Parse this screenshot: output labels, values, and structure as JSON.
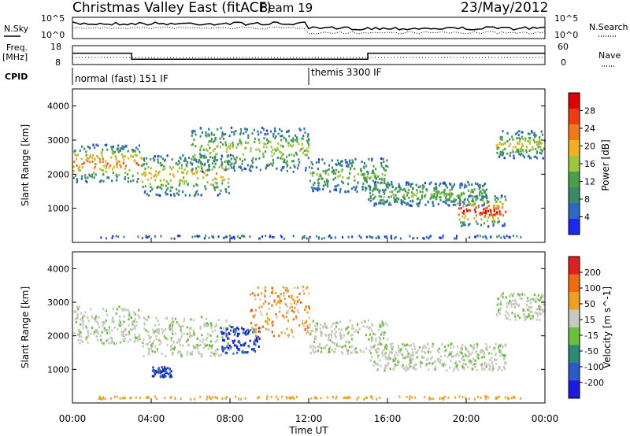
{
  "header": {
    "title": "Christmas Valley East (fitACF)",
    "beam": "Beam 19",
    "date": "23/May/2012"
  },
  "panel_labels": {
    "nsky": "N.Sky",
    "nsearch": "N.Search",
    "freq": "Freq.",
    "freq_unit": "[MHz]",
    "nave": "Nave",
    "cpid": "CPID"
  },
  "cpid_modes": [
    {
      "label": "normal (fast) 151 IF"
    },
    {
      "label": "themis 3300 IF"
    }
  ],
  "chart_data": [
    {
      "type": "line",
      "name": "noise",
      "yscale": "log",
      "left_ticks": [
        "10^5",
        "10^0"
      ],
      "right_ticks": [
        "10^5",
        "10^0"
      ]
    },
    {
      "type": "line",
      "name": "frequency",
      "left_ticks": [
        "18",
        "8"
      ],
      "right_ticks": [
        "60",
        "0"
      ],
      "x": [
        0,
        3,
        3,
        15,
        15,
        24
      ],
      "freq_mhz": [
        14,
        14,
        10.8,
        10.8,
        14,
        14
      ]
    },
    {
      "type": "heatmap",
      "name": "power",
      "ylabel": "Slant Range [km]",
      "yticks": [
        "1000",
        "2000",
        "3000",
        "4000"
      ],
      "ylim": [
        0,
        4500
      ],
      "colorbar": {
        "label": "Power [dB]",
        "ticks": [
          "4",
          "8",
          "12",
          "16",
          "20",
          "24",
          "28"
        ],
        "colors": [
          "#1a28f0",
          "#2a6abf",
          "#3a8a6a",
          "#4aa04a",
          "#9ac83a",
          "#f0b020",
          "#f07a1a",
          "#f03a10",
          "#e00000"
        ]
      },
      "bands": [
        {
          "t": [
            0,
            3.5
          ],
          "r": [
            1800,
            2900
          ],
          "peak": 20
        },
        {
          "t": [
            3.5,
            8
          ],
          "r": [
            1400,
            2600
          ],
          "peak": 16
        },
        {
          "t": [
            6,
            12
          ],
          "r": [
            2100,
            3400
          ],
          "peak": 12
        },
        {
          "t": [
            12,
            16
          ],
          "r": [
            1500,
            2500
          ],
          "peak": 10
        },
        {
          "t": [
            15,
            21
          ],
          "r": [
            1100,
            1800
          ],
          "peak": 10
        },
        {
          "t": [
            19.5,
            22
          ],
          "r": [
            500,
            1400
          ],
          "peak": 26
        },
        {
          "t": [
            21.5,
            24
          ],
          "r": [
            2500,
            3300
          ],
          "peak": 14
        }
      ]
    },
    {
      "type": "heatmap",
      "name": "velocity",
      "ylabel": "Slant Range [km]",
      "yticks": [
        "1000",
        "2000",
        "3000",
        "4000"
      ],
      "ylim": [
        0,
        4500
      ],
      "colorbar": {
        "label": "Velocity [m s^-1]",
        "ticks": [
          "200",
          "100",
          "50",
          "15",
          "-15",
          "-50",
          "-100",
          "-200"
        ],
        "colors": [
          "#1a1ae0",
          "#2a5ac8",
          "#2a8a7a",
          "#6ac03a",
          "#c8c8c0",
          "#f0a020",
          "#f06a10",
          "#e02020"
        ]
      },
      "bands": [
        {
          "t": [
            0,
            3.5
          ],
          "r": [
            1800,
            2900
          ],
          "v": "gray"
        },
        {
          "t": [
            3.5,
            8
          ],
          "r": [
            1400,
            2600
          ],
          "v": "gray"
        },
        {
          "t": [
            7.5,
            9.5
          ],
          "r": [
            1500,
            2300
          ],
          "v": "blue"
        },
        {
          "t": [
            4,
            5
          ],
          "r": [
            800,
            1100
          ],
          "v": "blue"
        },
        {
          "t": [
            9,
            12
          ],
          "r": [
            2000,
            3500
          ],
          "v": "orange"
        },
        {
          "t": [
            12,
            16
          ],
          "r": [
            1500,
            2500
          ],
          "v": "gray"
        },
        {
          "t": [
            15,
            22
          ],
          "r": [
            1000,
            1800
          ],
          "v": "gray"
        },
        {
          "t": [
            21.5,
            24
          ],
          "r": [
            2500,
            3300
          ],
          "v": "gray"
        }
      ]
    }
  ],
  "xaxis": {
    "ticks": [
      "00:00",
      "04:00",
      "08:00",
      "12:00",
      "16:00",
      "20:00",
      "00:00"
    ],
    "xlim": [
      0,
      24
    ],
    "label": "Time UT"
  },
  "colors": {
    "frame": "#000000",
    "separator": "#555555"
  }
}
